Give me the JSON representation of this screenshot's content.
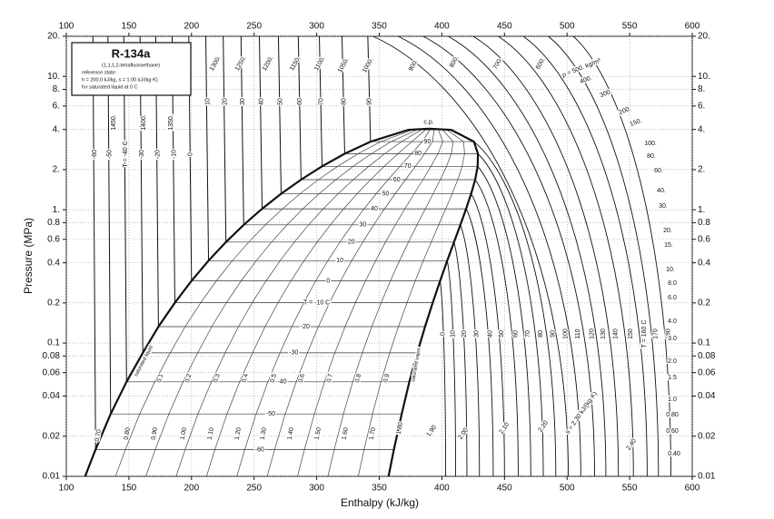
{
  "chart_data": {
    "type": "line",
    "title": "R-134a",
    "subtitle": "(1,1,1,2-tetrafluoroethane)",
    "reference_lines": [
      "reference state:",
      "h = 200.0 kJ/kg, s = 1.00 kJ/(kg·K)",
      "for saturated liquid at 0 C"
    ],
    "x_label": "Enthalpy (kJ/kg)",
    "y_label": "Pressure (MPa)",
    "xlim": [
      100,
      600
    ],
    "ylim": [
      0.01,
      20
    ],
    "log_y": true,
    "grid": true,
    "xticks": [
      100,
      150,
      200,
      250,
      300,
      350,
      400,
      450,
      500,
      550,
      600
    ],
    "yticks": [
      {
        "value": 20,
        "label": "20."
      },
      {
        "value": 10,
        "label": "10."
      },
      {
        "value": 8,
        "label": "8."
      },
      {
        "value": 6,
        "label": "6."
      },
      {
        "value": 4,
        "label": "4."
      },
      {
        "value": 2,
        "label": "2."
      },
      {
        "value": 1,
        "label": "1."
      },
      0.8,
      0.6,
      0.4,
      0.2,
      0.1,
      0.08,
      0.06,
      0.04,
      0.02,
      0.01
    ],
    "series": [
      {
        "name": "saturated liquid",
        "color": "#111111",
        "x": [
          115.0,
          123.4,
          135.4,
          148.1,
          161.1,
          173.6,
          186.7,
          200.0,
          213.6,
          227.5,
          241.7,
          256.4,
          271.6,
          287.5,
          304.3,
          322.4,
          343.0,
          373.3,
          389.6
        ],
        "values": [
          0.01,
          0.0159,
          0.0294,
          0.0512,
          0.0844,
          0.1327,
          0.2006,
          0.2928,
          0.4146,
          0.5717,
          0.7702,
          1.0166,
          1.3179,
          1.6818,
          2.1168,
          2.6332,
          3.2442,
          3.9724,
          4.059
        ]
      },
      {
        "name": "saturated vapor",
        "color": "#111111",
        "x": [
          357.4,
          361.7,
          367.9,
          374.0,
          380.3,
          386.6,
          392.7,
          398.6,
          404.3,
          409.7,
          414.8,
          419.4,
          423.4,
          426.6,
          428.6,
          428.8,
          425.6,
          407.4,
          389.6
        ],
        "values": [
          0.01,
          0.0159,
          0.0294,
          0.0512,
          0.0844,
          0.1327,
          0.2006,
          0.2928,
          0.4146,
          0.5717,
          0.7702,
          1.0166,
          1.3179,
          1.6818,
          2.1168,
          2.6332,
          3.2442,
          3.9724,
          4.059
        ]
      }
    ],
    "dome_isotherm_labels": [
      null,
      "-60",
      "-50",
      "-40",
      "-30",
      "-20",
      "T = -10 C",
      "0",
      "10",
      "20",
      "30",
      "40",
      "50",
      "60",
      "70",
      "80",
      "90",
      null,
      "c.p."
    ],
    "liquid_isotherm_labels": [
      null,
      "-60",
      "-50",
      "T = -40 C",
      "-30",
      "-20",
      "-10",
      "0",
      "10",
      "20",
      "30",
      "40",
      "50",
      "60",
      "70",
      "80",
      "90",
      null,
      null
    ],
    "quality_labels": [
      0.1,
      0.2,
      0.3,
      0.4,
      0.5,
      0.6,
      0.7,
      0.8,
      0.9
    ],
    "superheated_isotherms": {
      "labels": [
        "0",
        "10",
        "20",
        "30",
        "40",
        "50",
        "60",
        "70",
        "80",
        "90",
        "100",
        "110",
        "120",
        "130",
        "140",
        "150",
        "T = 160 C",
        "170",
        "180"
      ],
      "h_start": [
        398.6,
        404.3,
        409.7,
        414.8,
        419.4,
        423.4,
        426.6,
        428.6,
        428.8,
        425.6,
        345,
        365,
        385,
        405,
        425,
        445,
        465,
        485,
        505
      ],
      "p_start": [
        0.2928,
        0.4146,
        0.5717,
        0.7702,
        1.0166,
        1.3179,
        1.6818,
        2.1168,
        2.6332,
        3.2442,
        20,
        20,
        20,
        20,
        20,
        20,
        20,
        20,
        20
      ],
      "h_end": [
        403,
        411,
        420,
        430,
        441,
        450,
        461,
        471,
        481,
        491,
        501,
        511,
        522,
        531,
        541,
        553,
        564,
        573,
        583
      ]
    },
    "density_labels": [
      "ρ = 500. kg/m³",
      "400.",
      "300.",
      "200.",
      "150.",
      "100.",
      "80.",
      "60.",
      "40.",
      "30.",
      "20.",
      "15.",
      "10.",
      "8.0",
      "6.0",
      "4.0",
      "3.0",
      "2.0",
      "1.5",
      "1.0",
      "0.80",
      "0.60",
      "0.40"
    ],
    "liquid_density_labels": [
      "1450.",
      "1400.",
      "1350.",
      "1300.",
      "1250.",
      "1200.",
      "1150.",
      "1100.",
      "1050.",
      "1000.",
      "900.",
      "800.",
      "700.",
      "600."
    ],
    "entropy_labels": [
      "0.70",
      "0.80",
      "0.90",
      "1.00",
      "1.10",
      "1.20",
      "1.30",
      "1.40",
      "1.50",
      "1.60",
      "1.70",
      "1.80",
      "1.90",
      "2.00",
      "2.10",
      "2.20",
      "s = 2.30 kJ/(kg·K)",
      "2.40"
    ]
  }
}
